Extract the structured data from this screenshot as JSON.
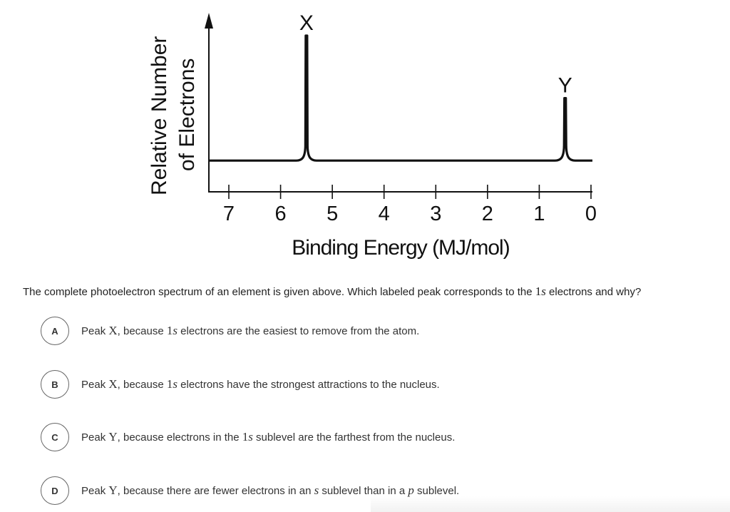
{
  "chart_data": {
    "type": "line",
    "xlabel": "Binding Energy (MJ/mol)",
    "ylabel_line1": "Relative Number",
    "ylabel_line2": "of Electrons",
    "xlim": [
      7.3,
      0
    ],
    "x_ticks": [
      7,
      6,
      5,
      4,
      3,
      2,
      1,
      0
    ],
    "tick_labels": [
      "7",
      "6",
      "5",
      "4",
      "3",
      "2",
      "1",
      "0"
    ],
    "baseline": 1,
    "ylim": [
      0,
      5
    ],
    "peaks": [
      {
        "label": "X",
        "x": 5.5,
        "height": 4
      },
      {
        "label": "Y",
        "x": 0.5,
        "height": 2
      }
    ],
    "grid": false,
    "x_axis_reversed": true
  },
  "question": {
    "before": "The complete photoelectron spectrum of an element is given above. Which labeled peak corresponds to the ",
    "math_num": "1",
    "math_var": "s",
    "after": " electrons and why?"
  },
  "options": [
    {
      "letter": "A",
      "text_before": "Peak ",
      "peak": "X",
      "text_mid": ", because ",
      "num": "1",
      "var": "s",
      "text_after": " electrons are the easiest to remove from the atom."
    },
    {
      "letter": "B",
      "text_before": "Peak ",
      "peak": "X",
      "text_mid": ", because ",
      "num": "1",
      "var": "s",
      "text_after": " electrons have the strongest attractions to the nucleus."
    },
    {
      "letter": "C",
      "text_before": "Peak ",
      "peak": "Y",
      "text_mid": ", because electrons in the ",
      "num": "1",
      "var": "s",
      "text_after": " sublevel are the farthest from the nucleus."
    },
    {
      "letter": "D",
      "text_before": "Peak ",
      "peak": "Y",
      "text_mid": ", because there are fewer electrons in an ",
      "var": "s",
      "text_mid2": " sublevel than in a ",
      "var2": "p",
      "text_after": " sublevel."
    }
  ]
}
